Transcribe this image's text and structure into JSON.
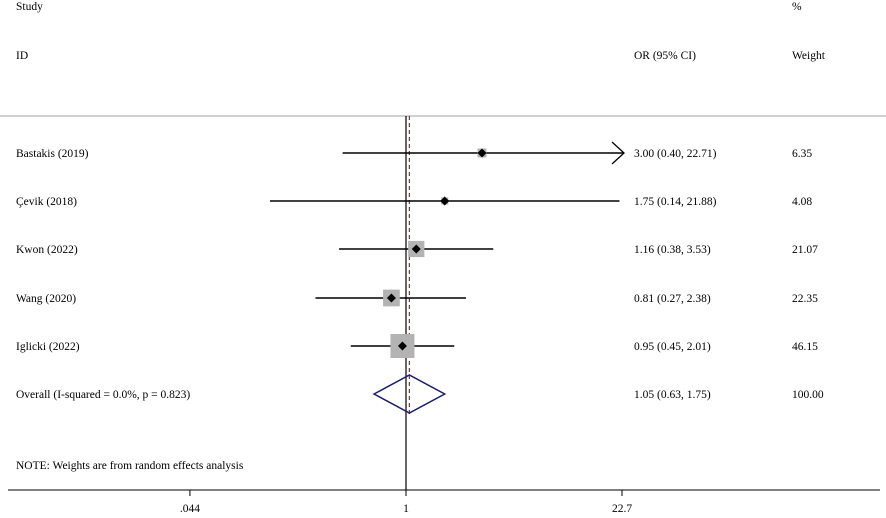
{
  "header": {
    "col_study": "Study",
    "col_id": "ID",
    "col_or": "OR (95% CI)",
    "col_pct": "%",
    "col_weight": "Weight"
  },
  "note": "NOTE: Weights are from random effects analysis",
  "chart_data": {
    "type": "forest",
    "scale": "log",
    "null_line": 1,
    "overall_line": 1.05,
    "xlim": [
      0.044,
      22.7
    ],
    "xticks": [
      {
        "value": 0.044,
        "label": ".044"
      },
      {
        "value": 1,
        "label": "1"
      },
      {
        "value": 22.7,
        "label": "22.7"
      }
    ],
    "studies": [
      {
        "study": "Bastakis  (2019)",
        "or": 3.0,
        "lo": 0.4,
        "hi": 22.71,
        "ci_text": "3.00 (0.40, 22.71)",
        "weight": 6.35,
        "weight_text": "6.35",
        "arrow_right": true
      },
      {
        "study": "Çevik  (2018)",
        "or": 1.75,
        "lo": 0.14,
        "hi": 21.88,
        "ci_text": "1.75 (0.14, 21.88)",
        "weight": 4.08,
        "weight_text": "4.08",
        "arrow_right": false
      },
      {
        "study": "Kwon  (2022)",
        "or": 1.16,
        "lo": 0.38,
        "hi": 3.53,
        "ci_text": "1.16 (0.38, 3.53)",
        "weight": 21.07,
        "weight_text": "21.07",
        "arrow_right": false
      },
      {
        "study": "Wang   (2020)",
        "or": 0.81,
        "lo": 0.27,
        "hi": 2.38,
        "ci_text": "0.81 (0.27, 2.38)",
        "weight": 22.35,
        "weight_text": "22.35",
        "arrow_right": false
      },
      {
        "study": "Iglicki (2022)",
        "or": 0.95,
        "lo": 0.45,
        "hi": 2.01,
        "ci_text": "0.95 (0.45, 2.01)",
        "weight": 46.15,
        "weight_text": "46.15",
        "arrow_right": false
      }
    ],
    "overall": {
      "label": "Overall  (I-squared = 0.0%, p = 0.823)",
      "or": 1.05,
      "lo": 0.63,
      "hi": 1.75,
      "ci_text": "1.05 (0.63, 1.75)",
      "weight_text": "100.00"
    }
  }
}
